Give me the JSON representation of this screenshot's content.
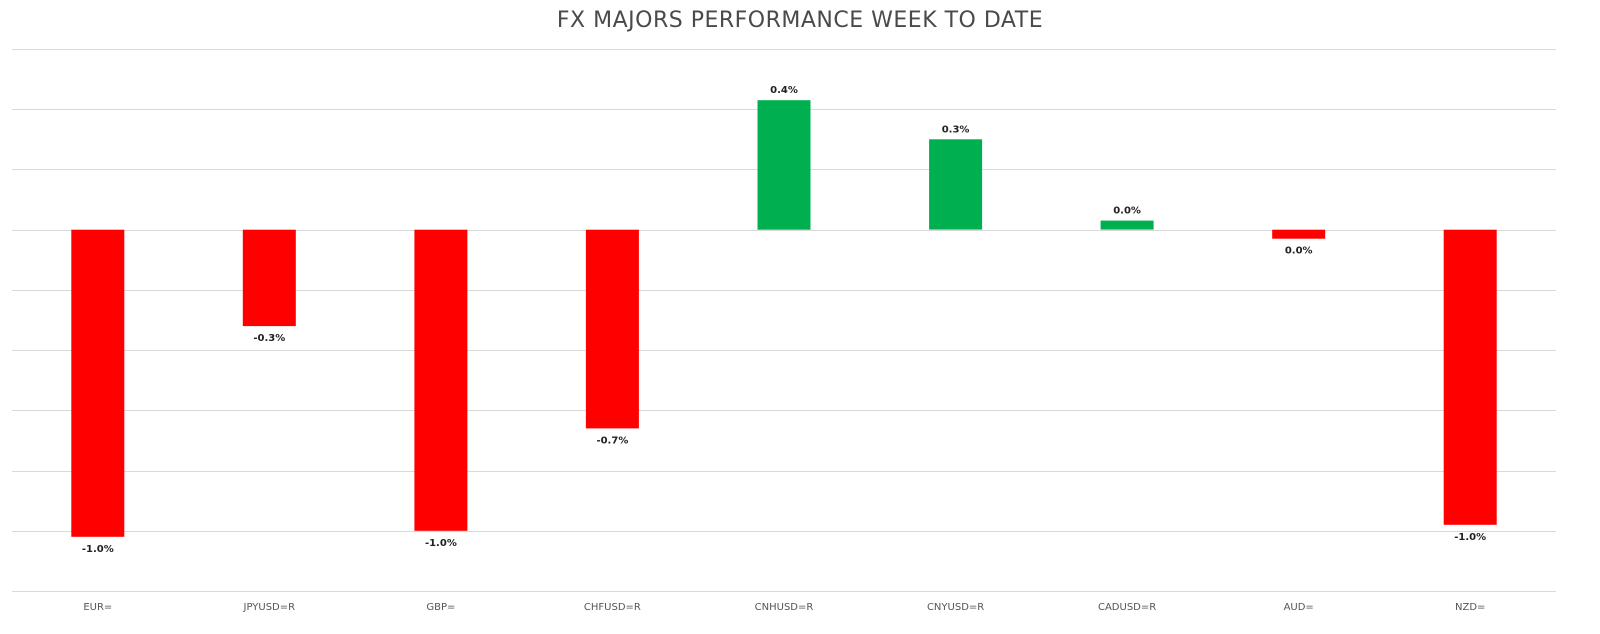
{
  "chart_data": {
    "type": "bar",
    "title": "FX MAJORS PERFORMANCE WEEK TO DATE",
    "xlabel": "",
    "ylabel": "",
    "categories": [
      "EUR=",
      "JPYUSD=R",
      "GBP=",
      "CHFUSD=R",
      "CNHUSD=R",
      "CNYUSD=R",
      "CADUSD=R",
      "AUD=",
      "NZD="
    ],
    "values": [
      -1.02,
      -0.32,
      -1.0,
      -0.66,
      0.43,
      0.3,
      0.03,
      -0.03,
      -0.98
    ],
    "value_labels": [
      "-1.0%",
      "-0.3%",
      "-1.0%",
      "-0.7%",
      "0.4%",
      "0.3%",
      "0.0%",
      "0.0%",
      "-1.0%"
    ],
    "ylim": [
      -1.2,
      0.6
    ],
    "grid": true,
    "colors": {
      "positive": "#00b050",
      "negative": "#ff0000",
      "grid": "#d9d9d9"
    }
  }
}
